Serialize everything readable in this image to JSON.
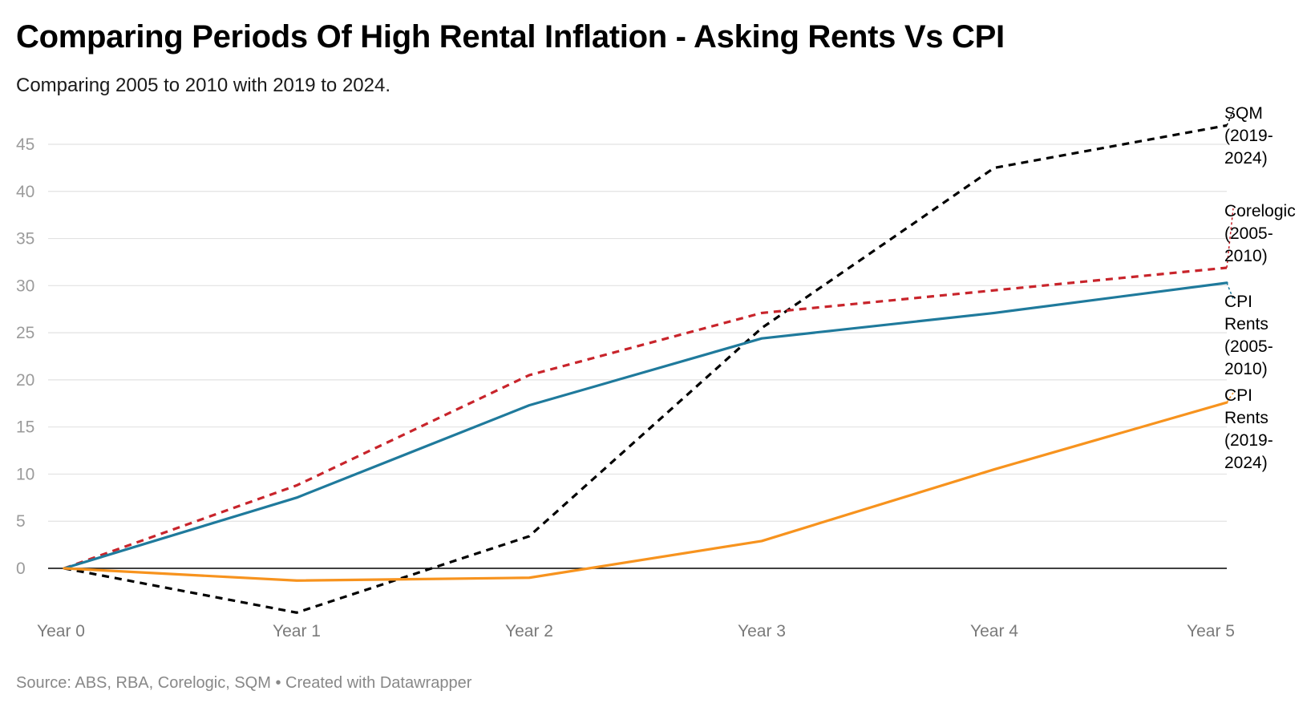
{
  "title": "Comparing Periods Of High Rental Inflation - Asking Rents Vs CPI",
  "subtitle": "Comparing 2005 to 2010 with 2019 to 2024.",
  "footer": "Source: ABS, RBA, Corelogic, SQM • Created with Datawrapper",
  "chart_data": {
    "type": "line",
    "x": [
      "Year 0",
      "Year 1",
      "Year 2",
      "Year 3",
      "Year 4",
      "Year 5"
    ],
    "y_ticks": [
      0,
      5,
      10,
      15,
      20,
      25,
      30,
      35,
      40,
      45
    ],
    "ylim": [
      -5,
      48
    ],
    "grid": true,
    "legend": "direct labels at line ends (right)",
    "series": [
      {
        "name": "SQM (2019-2024)",
        "label_lines": [
          "SQM",
          "(2019-",
          "2024)"
        ],
        "values": [
          0,
          -4.7,
          3.4,
          25.5,
          42.5,
          47
        ],
        "color": "#000000",
        "dashed": true
      },
      {
        "name": "Corelogic (2005-2010)",
        "label_lines": [
          "Corelogic",
          "(2005-",
          "2010)"
        ],
        "values": [
          0,
          8.8,
          20.5,
          27.1,
          29.5,
          31.9
        ],
        "color": "#c8242b",
        "dashed": true
      },
      {
        "name": "CPI Rents (2005-2010)",
        "label_lines": [
          "CPI",
          "Rents",
          "(2005-",
          "2010)"
        ],
        "values": [
          0,
          7.5,
          17.3,
          24.4,
          27.1,
          30.3
        ],
        "color": "#1f7a9c",
        "dashed": false
      },
      {
        "name": "CPI Rents (2019-2024)",
        "label_lines": [
          "CPI",
          "Rents",
          "(2019-",
          "2024)"
        ],
        "values": [
          0,
          -1.3,
          -1.0,
          2.9,
          10.5,
          17.6
        ],
        "color": "#f7931e",
        "dashed": false
      }
    ]
  }
}
